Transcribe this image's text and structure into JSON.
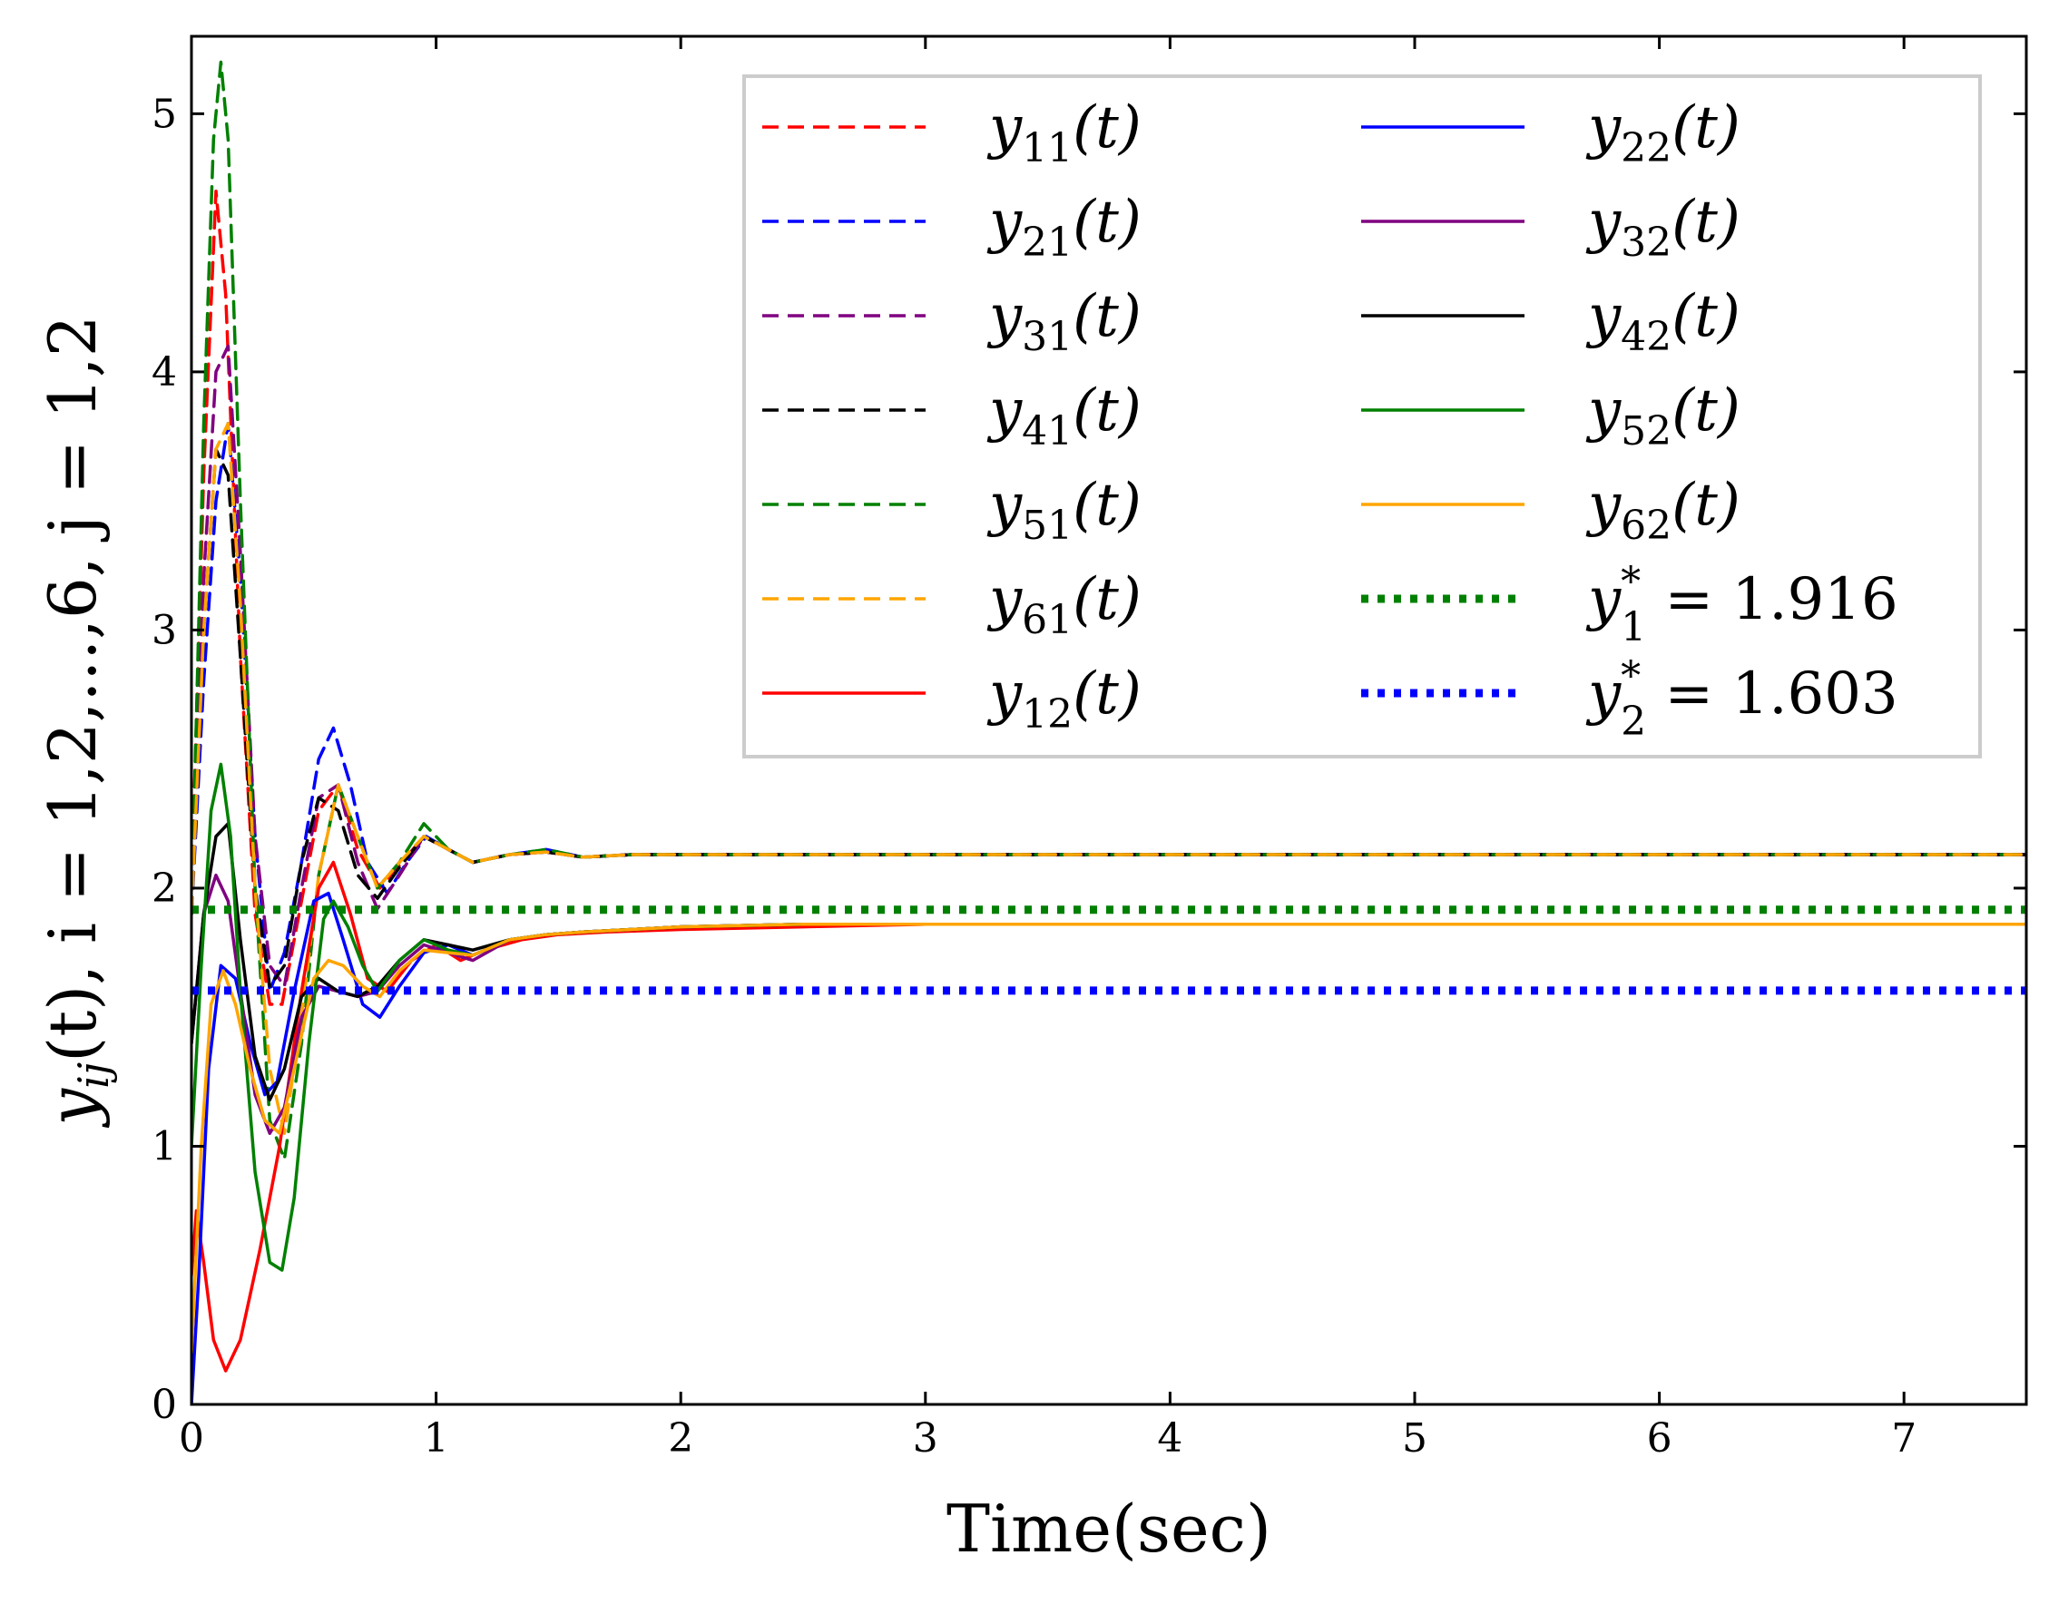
{
  "chart_data": {
    "type": "line",
    "title": "",
    "xlabel": "Time(sec)",
    "ylabel": "y_ij(t), i = 1,2,...,6, j = 1,2",
    "ylabel_parts": {
      "y": "y",
      "sub": "ij",
      "rest": "(t), i = 1,2,...,6, j = 1,2"
    },
    "xlim": [
      0,
      7.5
    ],
    "ylim": [
      0,
      5.3
    ],
    "xticks": [
      "0",
      "1",
      "2",
      "3",
      "4",
      "5",
      "6",
      "7"
    ],
    "yticks": [
      "0",
      "1",
      "2",
      "3",
      "4",
      "5"
    ],
    "legend_position": "top-right",
    "series": [
      {
        "name": "y11(t)",
        "label_main": "y",
        "label_sub": "11",
        "label_tail": "(t)",
        "color": "#ff0000",
        "style": "dashed",
        "x": [
          0,
          0.05,
          0.1,
          0.14,
          0.2,
          0.26,
          0.32,
          0.37,
          0.44,
          0.52,
          0.6,
          0.68,
          0.77,
          0.86,
          0.95,
          1.05,
          1.15,
          1.3,
          1.45,
          1.6,
          1.8,
          2.0,
          3.0,
          4.5,
          6,
          7.5
        ],
        "y": [
          2.0,
          3.6,
          4.7,
          4.3,
          2.9,
          1.9,
          1.55,
          1.55,
          1.9,
          2.3,
          2.4,
          2.15,
          2.0,
          2.1,
          2.2,
          2.15,
          2.1,
          2.13,
          2.14,
          2.12,
          2.13,
          2.13,
          2.13,
          2.13,
          2.13,
          2.13
        ]
      },
      {
        "name": "y21(t)",
        "label_main": "y",
        "label_sub": "21",
        "label_tail": "(t)",
        "color": "#0000ff",
        "style": "dashed",
        "x": [
          0,
          0.05,
          0.1,
          0.15,
          0.2,
          0.26,
          0.32,
          0.38,
          0.45,
          0.52,
          0.58,
          0.65,
          0.72,
          0.8,
          0.88,
          0.96,
          1.05,
          1.15,
          1.3,
          1.45,
          1.6,
          1.8,
          2.0,
          3.0,
          4.5,
          6,
          7.5
        ],
        "y": [
          1.9,
          2.8,
          3.5,
          3.8,
          3.2,
          2.2,
          1.6,
          1.75,
          2.1,
          2.5,
          2.62,
          2.4,
          2.1,
          1.98,
          2.1,
          2.2,
          2.15,
          2.1,
          2.13,
          2.15,
          2.12,
          2.13,
          2.13,
          2.13,
          2.13,
          2.13,
          2.13
        ]
      },
      {
        "name": "y31(t)",
        "label_main": "y",
        "label_sub": "31",
        "label_tail": "(t)",
        "color": "#800080",
        "style": "dashed",
        "x": [
          0,
          0.05,
          0.1,
          0.15,
          0.2,
          0.26,
          0.32,
          0.38,
          0.45,
          0.52,
          0.6,
          0.68,
          0.76,
          0.85,
          0.95,
          1.05,
          1.15,
          1.3,
          1.45,
          1.6,
          1.8,
          2.0,
          3.0,
          4.5,
          6,
          7.5
        ],
        "y": [
          1.9,
          3.2,
          4.0,
          4.1,
          3.3,
          2.2,
          1.7,
          1.62,
          2.0,
          2.35,
          2.4,
          2.1,
          1.92,
          2.05,
          2.2,
          2.15,
          2.1,
          2.13,
          2.14,
          2.12,
          2.13,
          2.13,
          2.13,
          2.13,
          2.13,
          2.13
        ]
      },
      {
        "name": "y41(t)",
        "label_main": "y",
        "label_sub": "41",
        "label_tail": "(t)",
        "color": "#000000",
        "style": "dashed",
        "x": [
          0,
          0.05,
          0.1,
          0.15,
          0.2,
          0.26,
          0.32,
          0.38,
          0.45,
          0.52,
          0.6,
          0.68,
          0.76,
          0.85,
          0.95,
          1.05,
          1.15,
          1.3,
          1.45,
          1.6,
          1.8,
          2.0,
          3.0,
          4.5,
          6,
          7.5
        ],
        "y": [
          1.9,
          3.0,
          3.7,
          3.6,
          2.9,
          2.0,
          1.62,
          1.7,
          2.1,
          2.35,
          2.3,
          2.05,
          1.96,
          2.08,
          2.2,
          2.15,
          2.1,
          2.13,
          2.14,
          2.12,
          2.13,
          2.13,
          2.13,
          2.13,
          2.13,
          2.13
        ]
      },
      {
        "name": "y51(t)",
        "label_main": "y",
        "label_sub": "51",
        "label_tail": "(t)",
        "color": "#008000",
        "style": "dashed",
        "x": [
          0,
          0.05,
          0.09,
          0.12,
          0.15,
          0.2,
          0.26,
          0.32,
          0.38,
          0.45,
          0.52,
          0.6,
          0.68,
          0.76,
          0.85,
          0.95,
          1.05,
          1.15,
          1.3,
          1.45,
          1.6,
          1.8,
          2.0,
          3.0,
          4.5,
          6,
          7.5
        ],
        "y": [
          1.9,
          3.8,
          4.9,
          5.2,
          4.9,
          3.5,
          2.0,
          1.1,
          0.95,
          1.4,
          2.05,
          2.4,
          2.2,
          2.0,
          2.1,
          2.25,
          2.15,
          2.1,
          2.13,
          2.15,
          2.12,
          2.13,
          2.13,
          2.13,
          2.13,
          2.13,
          2.13
        ]
      },
      {
        "name": "y61(t)",
        "label_main": "y",
        "label_sub": "61",
        "label_tail": "(t)",
        "color": "#ffa500",
        "style": "dashed",
        "x": [
          0,
          0.05,
          0.1,
          0.15,
          0.2,
          0.26,
          0.32,
          0.38,
          0.45,
          0.52,
          0.6,
          0.68,
          0.76,
          0.85,
          0.95,
          1.05,
          1.15,
          1.3,
          1.45,
          1.6,
          1.8,
          2.0,
          3.0,
          4.5,
          6,
          7.5
        ],
        "y": [
          1.9,
          3.0,
          3.7,
          3.8,
          3.1,
          2.0,
          1.3,
          1.05,
          1.5,
          2.05,
          2.4,
          2.2,
          2.0,
          2.1,
          2.2,
          2.15,
          2.1,
          2.13,
          2.14,
          2.12,
          2.13,
          2.13,
          2.13,
          2.13,
          2.13,
          2.13
        ]
      },
      {
        "name": "y12(t)",
        "label_main": "y",
        "label_sub": "12",
        "label_tail": "(t)",
        "color": "#ff0000",
        "style": "solid",
        "x": [
          0,
          0.02,
          0.05,
          0.09,
          0.14,
          0.2,
          0.28,
          0.36,
          0.45,
          0.52,
          0.58,
          0.65,
          0.72,
          0.8,
          0.9,
          1.0,
          1.1,
          1.2,
          1.35,
          1.5,
          1.7,
          2.0,
          2.5,
          3.0,
          4.5,
          6,
          7.5
        ],
        "y": [
          0.5,
          0.75,
          0.55,
          0.25,
          0.13,
          0.25,
          0.6,
          1.0,
          1.6,
          2.0,
          2.1,
          1.9,
          1.65,
          1.6,
          1.72,
          1.78,
          1.72,
          1.76,
          1.8,
          1.82,
          1.83,
          1.84,
          1.85,
          1.86,
          1.86,
          1.86,
          1.86
        ]
      },
      {
        "name": "y22(t)",
        "label_main": "y",
        "label_sub": "22",
        "label_tail": "(t)",
        "color": "#0000ff",
        "style": "solid",
        "x": [
          0,
          0.03,
          0.07,
          0.12,
          0.18,
          0.24,
          0.3,
          0.35,
          0.42,
          0.5,
          0.56,
          0.62,
          0.7,
          0.77,
          0.85,
          0.95,
          1.05,
          1.15,
          1.3,
          1.45,
          1.6,
          1.8,
          2.0,
          2.5,
          3.0,
          4.5,
          6,
          7.5
        ],
        "y": [
          0,
          0.5,
          1.3,
          1.7,
          1.65,
          1.4,
          1.2,
          1.25,
          1.6,
          1.95,
          1.98,
          1.8,
          1.55,
          1.5,
          1.62,
          1.75,
          1.78,
          1.74,
          1.8,
          1.82,
          1.83,
          1.84,
          1.85,
          1.86,
          1.86,
          1.86,
          1.86,
          1.86
        ]
      },
      {
        "name": "y32(t)",
        "label_main": "y",
        "label_sub": "32",
        "label_tail": "(t)",
        "color": "#800080",
        "style": "solid",
        "x": [
          0,
          0.05,
          0.1,
          0.15,
          0.2,
          0.26,
          0.32,
          0.38,
          0.45,
          0.52,
          0.6,
          0.68,
          0.76,
          0.85,
          0.95,
          1.05,
          1.15,
          1.3,
          1.45,
          1.6,
          1.8,
          2.0,
          2.5,
          3.0,
          4.5,
          6,
          7.5
        ],
        "y": [
          1.4,
          1.9,
          2.05,
          1.95,
          1.6,
          1.2,
          1.05,
          1.15,
          1.5,
          1.62,
          1.6,
          1.58,
          1.6,
          1.7,
          1.78,
          1.75,
          1.72,
          1.8,
          1.82,
          1.83,
          1.84,
          1.85,
          1.86,
          1.86,
          1.86,
          1.86,
          1.86
        ]
      },
      {
        "name": "y42(t)",
        "label_main": "y",
        "label_sub": "42",
        "label_tail": "(t)",
        "color": "#000000",
        "style": "solid",
        "x": [
          0,
          0.05,
          0.1,
          0.15,
          0.2,
          0.26,
          0.32,
          0.38,
          0.45,
          0.52,
          0.6,
          0.68,
          0.76,
          0.85,
          0.95,
          1.05,
          1.15,
          1.3,
          1.45,
          1.6,
          1.8,
          2.0,
          2.5,
          3.0,
          4.5,
          6,
          7.5
        ],
        "y": [
          1.4,
          1.9,
          2.2,
          2.25,
          1.8,
          1.35,
          1.18,
          1.3,
          1.58,
          1.65,
          1.6,
          1.58,
          1.62,
          1.72,
          1.8,
          1.78,
          1.76,
          1.8,
          1.82,
          1.83,
          1.84,
          1.85,
          1.86,
          1.86,
          1.86,
          1.86,
          1.86
        ]
      },
      {
        "name": "y52(t)",
        "label_main": "y",
        "label_sub": "52",
        "label_tail": "(t)",
        "color": "#008000",
        "style": "solid",
        "x": [
          0,
          0.04,
          0.08,
          0.12,
          0.16,
          0.2,
          0.26,
          0.32,
          0.37,
          0.42,
          0.48,
          0.54,
          0.58,
          0.64,
          0.7,
          0.76,
          0.85,
          0.95,
          1.05,
          1.15,
          1.3,
          1.45,
          1.6,
          1.8,
          2.0,
          2.5,
          3.0,
          4.5,
          6,
          7.5
        ],
        "y": [
          1.0,
          1.7,
          2.3,
          2.48,
          2.2,
          1.6,
          0.9,
          0.55,
          0.52,
          0.8,
          1.4,
          1.88,
          1.95,
          1.85,
          1.7,
          1.6,
          1.72,
          1.8,
          1.76,
          1.74,
          1.8,
          1.82,
          1.83,
          1.84,
          1.85,
          1.86,
          1.86,
          1.86,
          1.86,
          1.86
        ]
      },
      {
        "name": "y62(t)",
        "label_main": "y",
        "label_sub": "62",
        "label_tail": "(t)",
        "color": "#ffa500",
        "style": "solid",
        "x": [
          0,
          0.04,
          0.08,
          0.13,
          0.18,
          0.24,
          0.3,
          0.36,
          0.42,
          0.5,
          0.56,
          0.62,
          0.7,
          0.77,
          0.85,
          0.95,
          1.05,
          1.15,
          1.3,
          1.45,
          1.6,
          1.8,
          2.0,
          2.5,
          3.0,
          4.5,
          6,
          7.5
        ],
        "y": [
          0.2,
          1.0,
          1.55,
          1.68,
          1.55,
          1.3,
          1.1,
          1.05,
          1.3,
          1.65,
          1.72,
          1.7,
          1.62,
          1.58,
          1.68,
          1.76,
          1.75,
          1.74,
          1.8,
          1.82,
          1.83,
          1.84,
          1.85,
          1.86,
          1.86,
          1.86,
          1.86,
          1.86
        ]
      },
      {
        "name": "y1* = 1.916",
        "label_main": "y",
        "label_sup": "*",
        "label_sub": "1",
        "label_tail": " = 1.916",
        "color": "#008000",
        "style": "dotted",
        "x": [
          0,
          7.5
        ],
        "y": [
          1.916,
          1.916
        ]
      },
      {
        "name": "y2* = 1.603",
        "label_main": "y",
        "label_sup": "*",
        "label_sub": "2",
        "label_tail": " = 1.603",
        "color": "#0000ff",
        "style": "dotted",
        "x": [
          0,
          7.5
        ],
        "y": [
          1.603,
          1.603
        ]
      }
    ]
  }
}
